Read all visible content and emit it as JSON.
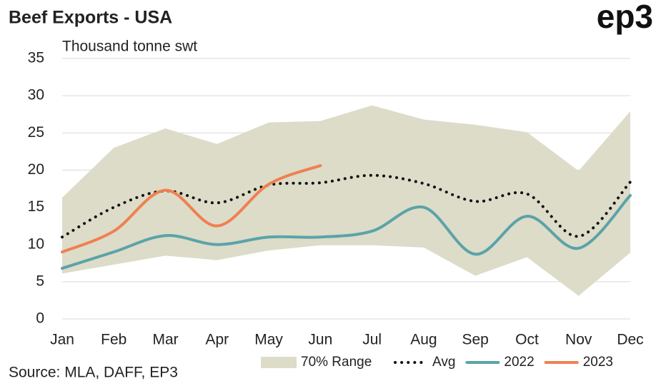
{
  "chart_data": {
    "type": "line",
    "title": "Beef Exports - USA",
    "brand": "ep3",
    "y_label": "Thousand tonne swt",
    "source": "Source: MLA, DAFF, EP3",
    "categories": [
      "Jan",
      "Feb",
      "Mar",
      "Apr",
      "May",
      "Jun",
      "Jul",
      "Aug",
      "Sep",
      "Oct",
      "Nov",
      "Dec"
    ],
    "range": {
      "name": "70% Range",
      "color": "#dcdcc9",
      "high": [
        16.3,
        23,
        25.6,
        23.5,
        26.4,
        26.6,
        28.7,
        26.8,
        26.1,
        25.1,
        19.9,
        27.9
      ],
      "low": [
        6.1,
        7.3,
        8.5,
        7.9,
        9.2,
        9.9,
        9.9,
        9.6,
        5.8,
        8.3,
        3.1,
        8.9
      ]
    },
    "series": [
      {
        "name": "Avg",
        "color": "#111111",
        "dotted": true,
        "values": [
          11,
          15,
          17.2,
          15.6,
          18,
          18.3,
          19.3,
          18.2,
          15.8,
          16.8,
          11.1,
          18.4
        ]
      },
      {
        "name": "2022",
        "color": "#5ba3a8",
        "values": [
          6.8,
          9,
          11.2,
          10,
          11,
          11,
          11.8,
          15,
          8.7,
          13.8,
          9.5,
          16.6
        ]
      },
      {
        "name": "2023",
        "color": "#f08050",
        "values": [
          9,
          11.8,
          17.3,
          12.5,
          18.1,
          20.6,
          null,
          null,
          null,
          null,
          null,
          null
        ]
      }
    ],
    "ylim": [
      0,
      35
    ],
    "yticks": [
      0,
      5,
      10,
      15,
      20,
      25,
      30,
      35
    ],
    "grid": true
  }
}
